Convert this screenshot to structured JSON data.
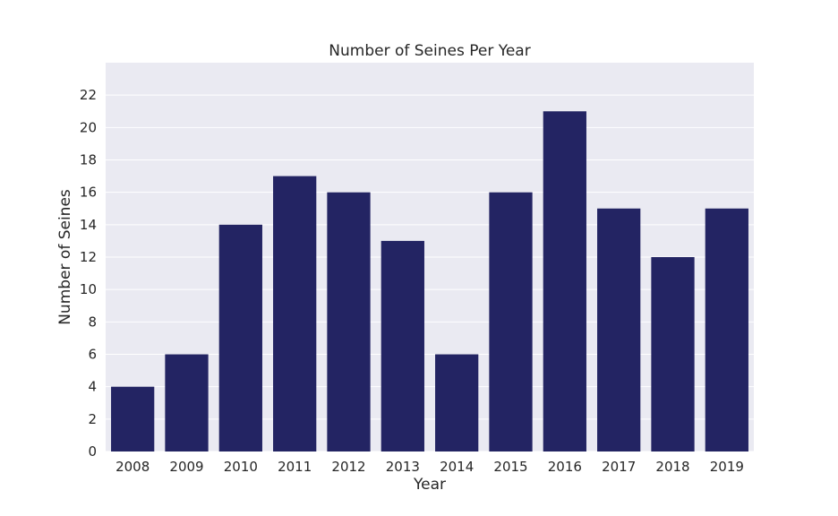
{
  "chart_data": {
    "type": "bar",
    "title": "Number of Seines Per Year",
    "xlabel": "Year",
    "ylabel": "Number of Seines",
    "categories": [
      "2008",
      "2009",
      "2010",
      "2011",
      "2012",
      "2013",
      "2014",
      "2015",
      "2016",
      "2017",
      "2018",
      "2019"
    ],
    "values": [
      4,
      6,
      14,
      17,
      16,
      13,
      6,
      16,
      21,
      15,
      12,
      15
    ],
    "ylim": [
      0,
      24
    ],
    "yticks": [
      0,
      2,
      4,
      6,
      8,
      10,
      12,
      14,
      16,
      18,
      20,
      22
    ],
    "grid": true,
    "colors": {
      "bar": "#232463",
      "plot_background": "#eaeaf2",
      "grid": "#ffffff"
    }
  }
}
